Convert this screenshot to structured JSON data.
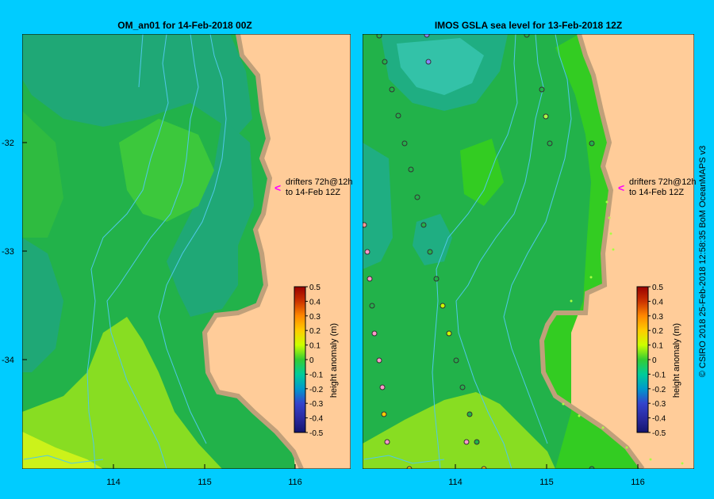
{
  "colors": {
    "background": "#00ccff",
    "land": "#ffcc99",
    "coast": "#c0a07a",
    "bathymetry": "#4fc8e8",
    "ocean_base": "#22b24a"
  },
  "left_panel": {
    "title": "OM_an01  for 14-Feb-2018 00Z",
    "drifters_line1": "drifters 72h@12h",
    "drifters_line2": "to 14-Feb 12Z",
    "drifter_marker": "<"
  },
  "right_panel": {
    "title": "IMOS GSLA sea level  for 13-Feb-2018 12Z",
    "drifters_line1": "drifters 72h@12h",
    "drifters_line2": "to 14-Feb 12Z",
    "drifter_marker": "<"
  },
  "axes": {
    "y_ticks": [
      "-32",
      "-33",
      "-34"
    ],
    "x_ticks": [
      "114",
      "115",
      "116"
    ]
  },
  "colorbar": {
    "label": "height anomaly (m)",
    "ticks": [
      "0.5",
      "0.4",
      "0.3",
      "0.2",
      "0.1",
      "0",
      "-0.1",
      "-0.2",
      "-0.3",
      "-0.4",
      "-0.5"
    ],
    "colors": [
      "#990000",
      "#cc3300",
      "#ff8800",
      "#ffcc00",
      "#ccff00",
      "#33cc33",
      "#00cc99",
      "#0099cc",
      "#3344cc",
      "#2a2aa0",
      "#14146e"
    ]
  },
  "credit": "© CSIRO 2018   25-Feb-2018 12:58:35 BoM OceanMAPS v3"
}
